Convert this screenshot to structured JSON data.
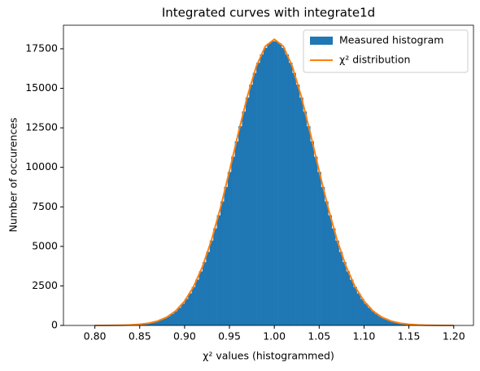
{
  "chart_data": {
    "type": "histogram",
    "title": "Integrated curves with integrate1d",
    "xlabel": "χ² values (histogrammed)",
    "ylabel": "Number of occurences",
    "legend": "upper right",
    "bins": [
      0.8,
      0.804,
      0.808,
      0.812,
      0.816,
      0.82,
      0.824,
      0.828,
      0.832,
      0.836,
      0.84,
      0.844,
      0.848,
      0.852,
      0.856,
      0.86,
      0.864,
      0.868,
      0.872,
      0.876,
      0.88,
      0.884,
      0.888,
      0.892,
      0.896,
      0.9,
      0.904,
      0.908,
      0.912,
      0.916,
      0.92,
      0.924,
      0.928,
      0.932,
      0.936,
      0.94,
      0.944,
      0.948,
      0.952,
      0.956,
      0.96,
      0.964,
      0.968,
      0.972,
      0.976,
      0.98,
      0.984,
      0.988,
      0.992,
      0.996,
      1.0,
      1.004,
      1.008,
      1.012,
      1.016,
      1.02,
      1.024,
      1.028,
      1.032,
      1.036,
      1.04,
      1.044,
      1.048,
      1.052,
      1.056,
      1.06,
      1.064,
      1.068,
      1.072,
      1.076,
      1.08,
      1.084,
      1.088,
      1.092,
      1.096,
      1.1,
      1.104,
      1.108,
      1.112,
      1.116,
      1.12,
      1.124,
      1.128,
      1.132,
      1.136,
      1.14,
      1.144,
      1.148,
      1.152,
      1.156,
      1.16,
      1.164,
      1.168,
      1.172,
      1.176,
      1.18,
      1.184,
      1.188,
      1.192,
      1.196,
      1.2
    ],
    "series": [
      {
        "name": "Measured histogram",
        "type": "histogram",
        "color": "#1f77b4",
        "values": [
          1,
          2,
          2,
          3,
          5,
          7,
          10,
          14,
          20,
          28,
          38,
          52,
          70,
          93,
          124,
          163,
          214,
          277,
          357,
          456,
          578,
          727,
          907,
          1123,
          1379,
          1680,
          2031,
          2436,
          2898,
          3421,
          4006,
          4655,
          5367,
          6140,
          6968,
          7845,
          8762,
          9710,
          10676,
          11645,
          12603,
          13532,
          14414,
          15233,
          15972,
          16616,
          17150,
          17561,
          17841,
          17982,
          17982,
          17841,
          17561,
          17150,
          16616,
          15972,
          15233,
          14414,
          13532,
          12603,
          11645,
          10676,
          9710,
          8762,
          7845,
          6968,
          6140,
          5367,
          4655,
          4006,
          3421,
          2898,
          2436,
          2031,
          1680,
          1379,
          1123,
          907,
          727,
          578,
          456,
          357,
          277,
          214,
          163,
          124,
          93,
          70,
          52,
          38,
          28,
          20,
          14,
          10,
          7,
          5,
          3,
          2,
          2,
          1
        ]
      },
      {
        "name": "χ² distribution",
        "type": "line",
        "color": "#ff7f0e",
        "x": [
          0.8,
          0.81,
          0.82,
          0.83,
          0.84,
          0.85,
          0.86,
          0.87,
          0.88,
          0.89,
          0.9,
          0.91,
          0.92,
          0.93,
          0.94,
          0.95,
          0.96,
          0.97,
          0.98,
          0.99,
          1.0,
          1.01,
          1.02,
          1.03,
          1.04,
          1.05,
          1.06,
          1.07,
          1.08,
          1.09,
          1.1,
          1.11,
          1.12,
          1.13,
          1.14,
          1.15,
          1.16,
          1.17,
          1.18,
          1.19,
          1.2
        ],
        "values": [
          1,
          2,
          6,
          14,
          33,
          70,
          143,
          279,
          517,
          912,
          1532,
          2450,
          3728,
          5397,
          7441,
          9763,
          12193,
          14493,
          16398,
          17659,
          18100,
          17659,
          16398,
          14493,
          12193,
          9763,
          7441,
          5397,
          3728,
          2450,
          1532,
          912,
          517,
          279,
          143,
          70,
          33,
          14,
          6,
          2,
          1
        ]
      }
    ],
    "xlim": [
      0.765,
      1.222
    ],
    "ylim": [
      0,
      18990
    ],
    "xticks": [
      {
        "value": 0.8,
        "label": "0.80"
      },
      {
        "value": 0.85,
        "label": "0.85"
      },
      {
        "value": 0.9,
        "label": "0.90"
      },
      {
        "value": 0.95,
        "label": "0.95"
      },
      {
        "value": 1.0,
        "label": "1.00"
      },
      {
        "value": 1.05,
        "label": "1.05"
      },
      {
        "value": 1.1,
        "label": "1.10"
      },
      {
        "value": 1.15,
        "label": "1.15"
      },
      {
        "value": 1.2,
        "label": "1.20"
      }
    ],
    "yticks": [
      0,
      2500,
      5000,
      7500,
      10000,
      12500,
      15000,
      17500
    ]
  }
}
